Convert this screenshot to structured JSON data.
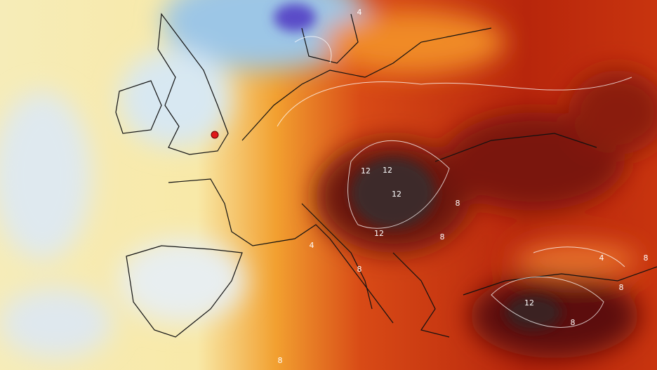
{
  "map": {
    "contour_labels": [
      "4",
      "12",
      "12",
      "12",
      "12",
      "8",
      "8",
      "8",
      "4",
      "12",
      "8",
      "8",
      "8",
      "4",
      "8"
    ]
  }
}
